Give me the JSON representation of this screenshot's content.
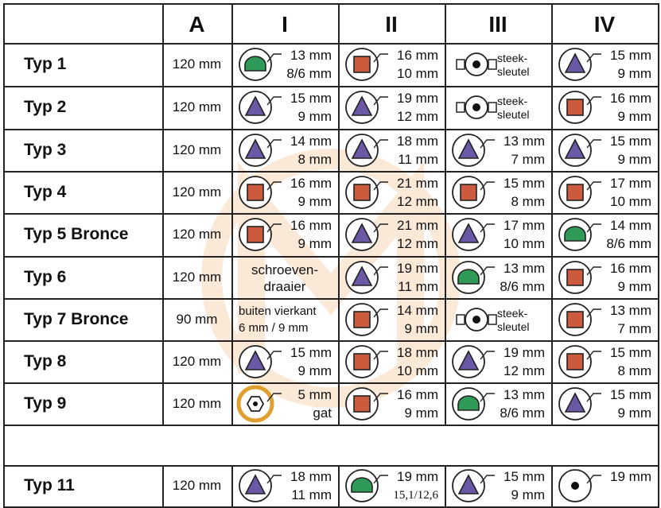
{
  "headers": [
    "",
    "A",
    "I",
    "II",
    "III",
    "IV"
  ],
  "colors": {
    "triangle": "#6a58a6",
    "square": "#cc5a3c",
    "dome": "#2f9a58",
    "hex": "#e0a030",
    "watermark": "#f0a050"
  },
  "rows": [
    {
      "label": "Typ 1",
      "a": "120 mm",
      "cells": [
        {
          "icon": "dome-icon",
          "top": "13 mm",
          "bottom": "8/6 mm"
        },
        {
          "icon": "square-icon",
          "top": "16 mm",
          "bottom": "10 mm"
        },
        {
          "icon": "wrench-key-icon",
          "top": "steek-",
          "bottom": "sleutel"
        },
        {
          "icon": "triangle-icon",
          "top": "15 mm",
          "bottom": "9 mm"
        }
      ]
    },
    {
      "label": "Typ 2",
      "a": "120 mm",
      "cells": [
        {
          "icon": "triangle-icon",
          "top": "15 mm",
          "bottom": "9 mm"
        },
        {
          "icon": "triangle-icon",
          "top": "19 mm",
          "bottom": "12 mm"
        },
        {
          "icon": "wrench-key-icon",
          "top": "steek-",
          "bottom": "sleutel"
        },
        {
          "icon": "square-icon",
          "top": "16 mm",
          "bottom": "9 mm"
        }
      ]
    },
    {
      "label": "Typ 3",
      "a": "120 mm",
      "cells": [
        {
          "icon": "triangle-icon",
          "top": "14 mm",
          "bottom": "8 mm"
        },
        {
          "icon": "triangle-icon",
          "top": "18 mm",
          "bottom": "11 mm"
        },
        {
          "icon": "triangle-icon",
          "top": "13 mm",
          "bottom": "7 mm"
        },
        {
          "icon": "triangle-icon",
          "top": "15 mm",
          "bottom": "9 mm"
        }
      ]
    },
    {
      "label": "Typ 4",
      "a": "120 mm",
      "cells": [
        {
          "icon": "square-icon",
          "top": "16 mm",
          "bottom": "9 mm"
        },
        {
          "icon": "square-icon",
          "top": "21 mm",
          "bottom": "12 mm"
        },
        {
          "icon": "square-icon",
          "top": "15 mm",
          "bottom": "8 mm"
        },
        {
          "icon": "square-icon",
          "top": "17 mm",
          "bottom": "10 mm"
        }
      ]
    },
    {
      "label": "Typ 5  Bronce",
      "a": "120 mm",
      "cells": [
        {
          "icon": "square-icon",
          "top": "16 mm",
          "bottom": "9 mm"
        },
        {
          "icon": "triangle-icon",
          "top": "21 mm",
          "bottom": "12 mm"
        },
        {
          "icon": "triangle-icon",
          "top": "17 mm",
          "bottom": "10 mm"
        },
        {
          "icon": "dome-icon",
          "top": "14 mm",
          "bottom": "8/6 mm"
        }
      ]
    },
    {
      "label": "Typ 6",
      "a": "120 mm",
      "cells": [
        {
          "icon": "none",
          "top": "schroeven-",
          "bottom": "draaier"
        },
        {
          "icon": "triangle-icon",
          "top": "19 mm",
          "bottom": "11 mm"
        },
        {
          "icon": "dome-icon",
          "top": "13 mm",
          "bottom": "8/6 mm"
        },
        {
          "icon": "square-icon",
          "top": "16 mm",
          "bottom": "9 mm"
        }
      ]
    },
    {
      "label": "Typ 7  Bronce",
      "a": "90 mm",
      "cells": [
        {
          "icon": "none",
          "top": "buiten vierkant",
          "bottom": "6 mm / 9 mm"
        },
        {
          "icon": "square-icon",
          "top": "14 mm",
          "bottom": "9 mm"
        },
        {
          "icon": "wrench-key-icon",
          "top": "steek-",
          "bottom": "sleutel"
        },
        {
          "icon": "square-icon",
          "top": "13 mm",
          "bottom": "7 mm"
        }
      ]
    },
    {
      "label": "Typ 8",
      "a": "120 mm",
      "cells": [
        {
          "icon": "triangle-icon",
          "top": "15 mm",
          "bottom": "9 mm"
        },
        {
          "icon": "square-icon",
          "top": "18 mm",
          "bottom": "10 mm"
        },
        {
          "icon": "triangle-icon",
          "top": "19 mm",
          "bottom": "12 mm"
        },
        {
          "icon": "square-icon",
          "top": "15 mm",
          "bottom": "8 mm"
        }
      ]
    },
    {
      "label": "Typ 9",
      "a": "120 mm",
      "cells": [
        {
          "icon": "hex-icon",
          "top": "5 mm",
          "bottom": "gat"
        },
        {
          "icon": "square-icon",
          "top": "16 mm",
          "bottom": "9 mm"
        },
        {
          "icon": "dome-icon",
          "top": "13 mm",
          "bottom": "8/6 mm"
        },
        {
          "icon": "triangle-icon",
          "top": "15 mm",
          "bottom": "9 mm"
        }
      ]
    },
    {
      "label": "",
      "a": "",
      "cells": [
        {
          "icon": "none",
          "top": "",
          "bottom": ""
        },
        {
          "icon": "none",
          "top": "",
          "bottom": ""
        },
        {
          "icon": "none",
          "top": "",
          "bottom": ""
        },
        {
          "icon": "none",
          "top": "",
          "bottom": ""
        }
      ]
    },
    {
      "label": "Typ 11",
      "a": "120 mm",
      "cells": [
        {
          "icon": "triangle-icon",
          "top": "18 mm",
          "bottom": "11 mm"
        },
        {
          "icon": "dome-icon",
          "top": "19 mm",
          "bottom": "15,1/12,6"
        },
        {
          "icon": "triangle-icon",
          "top": "15 mm",
          "bottom": "9 mm"
        },
        {
          "icon": "dot-icon",
          "top": "19 mm",
          "bottom": ""
        }
      ]
    }
  ]
}
